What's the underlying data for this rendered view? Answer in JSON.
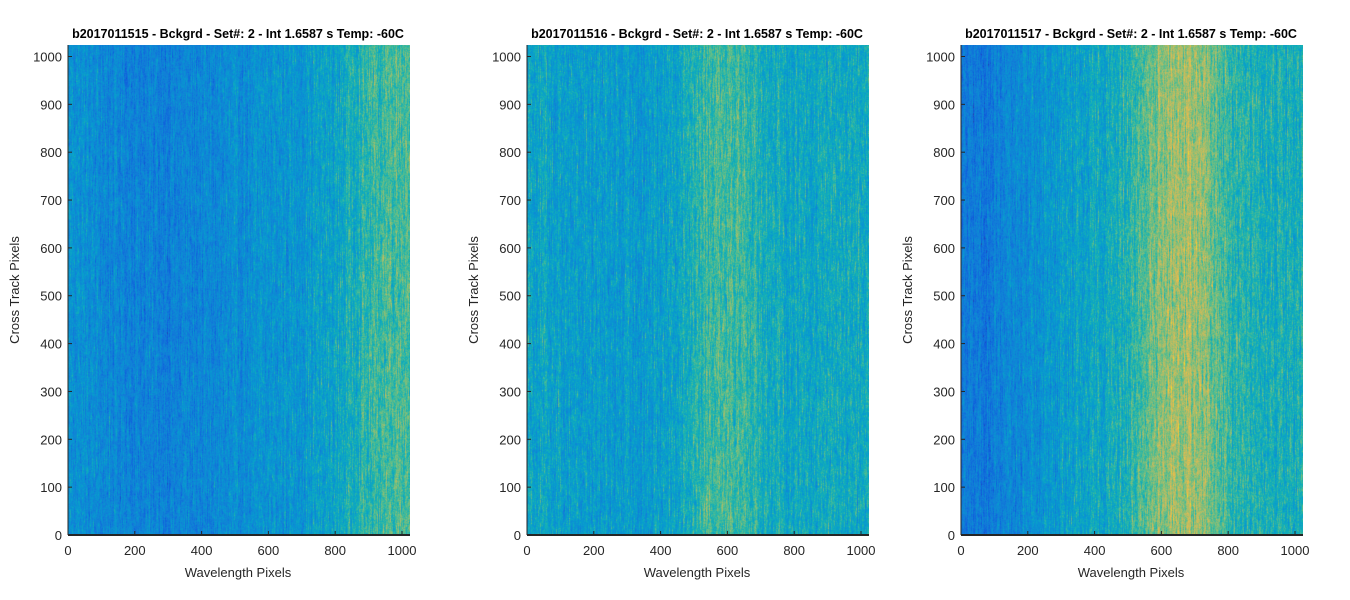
{
  "figure": {
    "background": "#ffffff"
  },
  "chart_data": [
    {
      "type": "heatmap",
      "title": "b2017011515 - Bckgrd - Set#: 2 - Int 1.6587 s Temp: -60C",
      "xlabel": "Wavelength Pixels",
      "ylabel": "Cross Track Pixels",
      "xlim": [
        0,
        1024
      ],
      "ylim": [
        0,
        1024
      ],
      "xticks": [
        0,
        200,
        400,
        600,
        800,
        1000
      ],
      "yticks": [
        0,
        100,
        200,
        300,
        400,
        500,
        600,
        700,
        800,
        900,
        1000
      ],
      "colormap": "parula",
      "column_profile": {
        "x": [
          0,
          100,
          200,
          300,
          400,
          500,
          600,
          700,
          800,
          850,
          900,
          950,
          1024
        ],
        "level": [
          0.42,
          0.36,
          0.33,
          0.32,
          0.34,
          0.37,
          0.4,
          0.43,
          0.48,
          0.54,
          0.58,
          0.62,
          0.64
        ]
      }
    },
    {
      "type": "heatmap",
      "title": "b2017011516 - Bckgrd - Set#: 2 - Int 1.6587 s Temp: -60C",
      "xlabel": "Wavelength Pixels",
      "ylabel": "Cross Track Pixels",
      "xlim": [
        0,
        1024
      ],
      "ylim": [
        0,
        1024
      ],
      "xticks": [
        0,
        200,
        400,
        600,
        800,
        1000
      ],
      "yticks": [
        0,
        100,
        200,
        300,
        400,
        500,
        600,
        700,
        800,
        900,
        1000
      ],
      "colormap": "parula",
      "column_profile": {
        "x": [
          0,
          100,
          200,
          300,
          400,
          450,
          500,
          550,
          600,
          650,
          700,
          750,
          800,
          900,
          1024
        ],
        "level": [
          0.5,
          0.47,
          0.45,
          0.44,
          0.46,
          0.5,
          0.56,
          0.62,
          0.63,
          0.6,
          0.55,
          0.51,
          0.5,
          0.51,
          0.52
        ]
      }
    },
    {
      "type": "heatmap",
      "title": "b2017011517 - Bckgrd - Set#: 2 - Int 1.6587 s Temp: -60C",
      "xlabel": "Wavelength Pixels",
      "ylabel": "Cross Track Pixels",
      "xlim": [
        0,
        1024
      ],
      "ylim": [
        0,
        1024
      ],
      "xticks": [
        0,
        200,
        400,
        600,
        800,
        1000
      ],
      "yticks": [
        0,
        100,
        200,
        300,
        400,
        500,
        600,
        700,
        800,
        900,
        1000
      ],
      "colormap": "parula",
      "column_profile": {
        "x": [
          0,
          50,
          100,
          200,
          300,
          400,
          500,
          550,
          600,
          650,
          700,
          750,
          800,
          900,
          1024
        ],
        "level": [
          0.3,
          0.27,
          0.3,
          0.38,
          0.45,
          0.5,
          0.56,
          0.64,
          0.72,
          0.75,
          0.74,
          0.68,
          0.58,
          0.53,
          0.52
        ]
      }
    }
  ]
}
